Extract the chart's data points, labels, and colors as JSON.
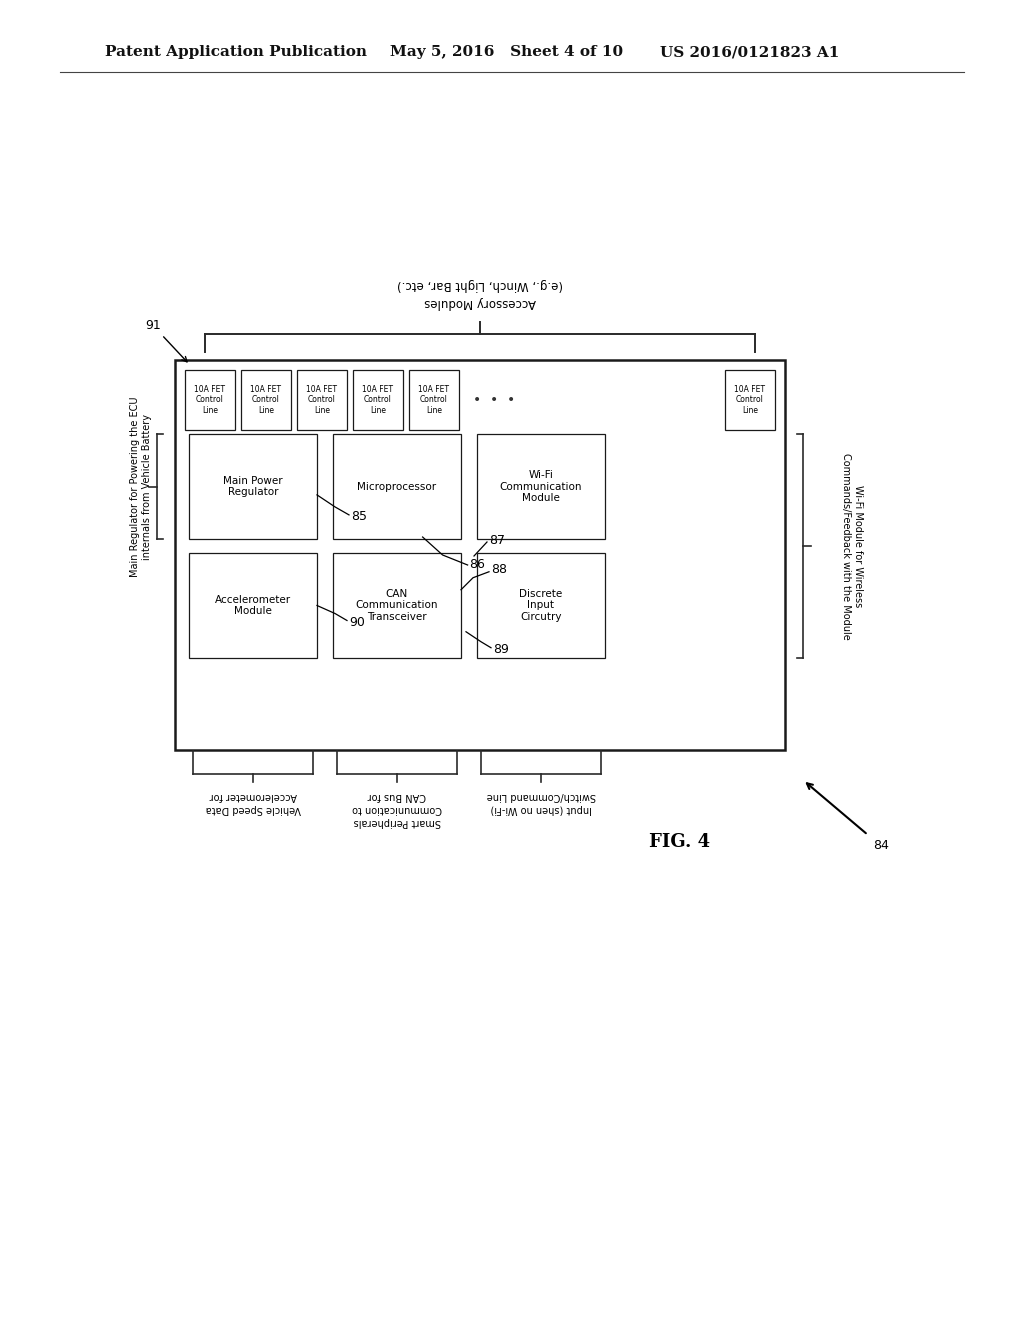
{
  "header_left": "Patent Application Publication",
  "header_mid": "May 5, 2016   Sheet 4 of 10",
  "header_right": "US 2016/0121823 A1",
  "fig_label": "FIG. 4",
  "bg_color": "#ffffff",
  "fig91_label": "91",
  "fig84_label": "84",
  "fig85_label": "85",
  "fig86_label": "86",
  "fig87_label": "87",
  "fig88_label": "88",
  "fig89_label": "89",
  "fig90_label": "90",
  "fet_box_label": "10A FET\nControl\nLine",
  "main_boxes": [
    {
      "label": "Main Power\nRegulator",
      "row": 0,
      "col": 0
    },
    {
      "label": "Microprocessor",
      "row": 0,
      "col": 1
    },
    {
      "label": "Wi-Fi\nCommunication\nModule",
      "row": 0,
      "col": 2
    },
    {
      "label": "Accelerometer\nModule",
      "row": 1,
      "col": 0
    },
    {
      "label": "CAN\nCommunication\nTransceiver",
      "row": 1,
      "col": 1
    },
    {
      "label": "Discrete\nInput\nCircutry",
      "row": 1,
      "col": 2
    }
  ],
  "accessory_line1": "Accessory Modules",
  "accessory_line2": "(e.g., Winch, Light Bar, etc.)",
  "left_label": "Main Regulator for Powering the ECU\ninternals from Vehicle Battery",
  "right_label": "Wi-Fi Module for Wireless\nCommands/Feedback with the Module",
  "bottom1_label": "Accelerometer for\nVehicle Speed Data",
  "bottom2_label": "CAN Bus for\nCommunication to\nSmart Peripherals",
  "bottom3_label": "Switch/Command Line\nInput (shen no Wi-Fi)"
}
